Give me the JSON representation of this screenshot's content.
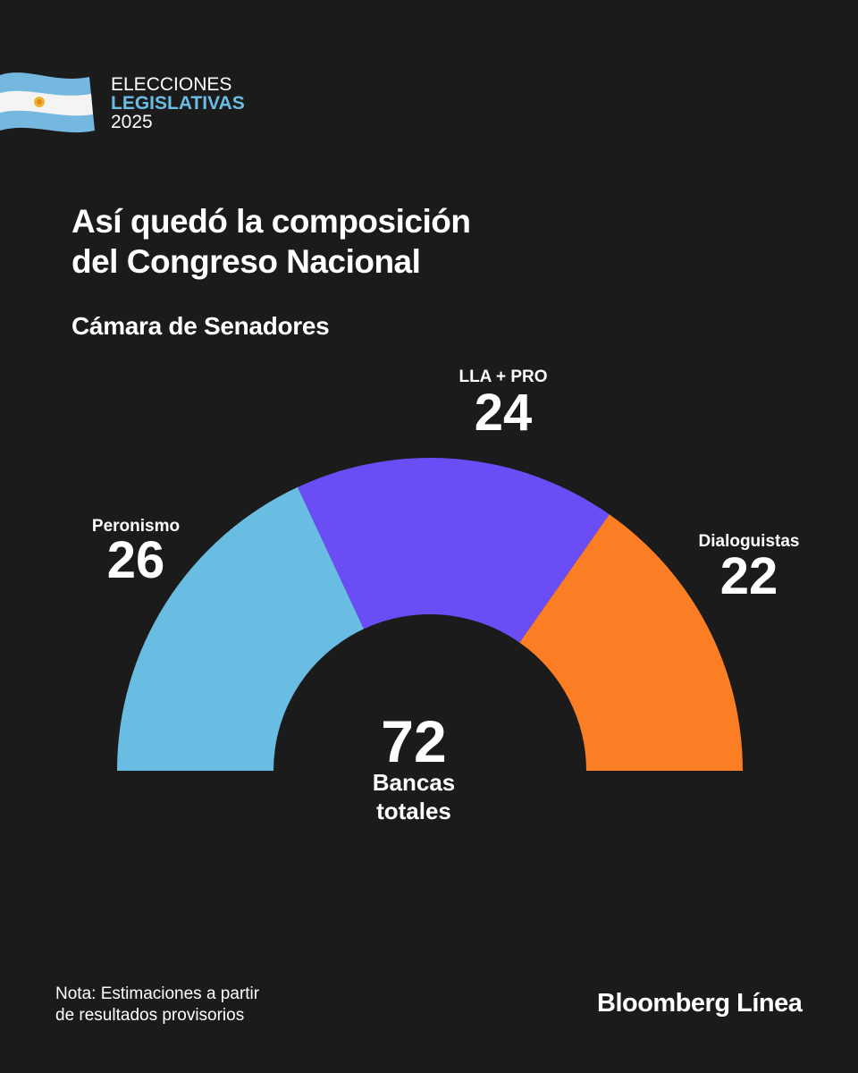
{
  "header": {
    "line1": "ELECCIONES",
    "line2": "LEGISLATIVAS",
    "line3": "2025",
    "flag_icon": "argentina-flag-icon"
  },
  "title_line1": "Así quedó la composición",
  "title_line2": "del Congreso Nacional",
  "subtitle": "Cámara de Senadores",
  "chart_data": {
    "type": "pie",
    "variant": "semicircle-donut",
    "title": "Cámara de Senadores",
    "total": 72,
    "total_label_line1": "Bancas",
    "total_label_line2": "totales",
    "slices": [
      {
        "name": "Peronismo",
        "value": 26,
        "color": "#69bde2"
      },
      {
        "name": "LLA + PRO",
        "value": 24,
        "color": "#6b4df5"
      },
      {
        "name": "Dialoguistas",
        "value": 22,
        "color": "#fb7d24"
      }
    ]
  },
  "footer": {
    "note_line1": "Nota: Estimaciones a partir",
    "note_line2": "de resultados provisorios",
    "logo": "Bloomberg Línea"
  }
}
